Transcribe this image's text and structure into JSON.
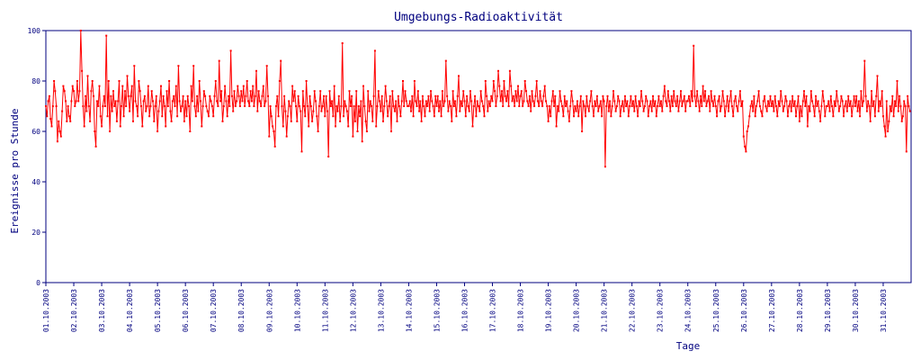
{
  "chart_data": {
    "type": "line",
    "title": "Umgebungs-Radioaktivität",
    "xlabel": "Tage",
    "ylabel": "Ereignisse pro Stunde",
    "ylim": [
      0,
      100
    ],
    "yticks": [
      "0",
      "20",
      "40",
      "60",
      "80",
      "100"
    ],
    "xticks": [
      "01.10.2003",
      "02.10.2003",
      "03.10.2003",
      "04.10.2003",
      "05.10.2003",
      "06.10.2003",
      "07.10.2003",
      "08.10.2003",
      "09.10.2003",
      "10.10.2003",
      "11.10.2003",
      "12.10.2003",
      "13.10.2003",
      "14.10.2003",
      "15.10.2003",
      "16.10.2003",
      "17.10.2003",
      "18.10.2003",
      "19.10.2003",
      "20.10.2003",
      "21.10.2003",
      "22.10.2003",
      "23.10.2003",
      "24.10.2003",
      "25.10.2003",
      "26.10.2003",
      "27.10.2003",
      "28.10.2003",
      "29.10.2003",
      "30.10.2003",
      "31.10.2003"
    ],
    "grid": false,
    "series_color": "#ff0000",
    "axis_color": "#00007f",
    "daily_values": [
      [
        70,
        66,
        72,
        74,
        65,
        62,
        70,
        80,
        76,
        70,
        56,
        64,
        60,
        58,
        68,
        78,
        76,
        72,
        64,
        70,
        66,
        64,
        72,
        78
      ],
      [
        76,
        70,
        72,
        80,
        72,
        76,
        100,
        84,
        70,
        62,
        74,
        68,
        82,
        70,
        64,
        76,
        80,
        74,
        60,
        54,
        72,
        70,
        78,
        66
      ],
      [
        62,
        70,
        74,
        70,
        98,
        66,
        80,
        60,
        74,
        68,
        76,
        70,
        72,
        64,
        72,
        80,
        62,
        70,
        78,
        66,
        76,
        70,
        82,
        74
      ],
      [
        68,
        74,
        78,
        64,
        86,
        72,
        70,
        66,
        80,
        76,
        70,
        62,
        72,
        74,
        68,
        70,
        78,
        66,
        70,
        76,
        72,
        64,
        70,
        74
      ],
      [
        60,
        68,
        72,
        78,
        66,
        74,
        70,
        62,
        76,
        70,
        80,
        68,
        64,
        72,
        74,
        70,
        78,
        66,
        86,
        72,
        68,
        70,
        74,
        64
      ],
      [
        72,
        66,
        74,
        70,
        60,
        78,
        72,
        86,
        70,
        66,
        74,
        68,
        80,
        72,
        62,
        70,
        76,
        74,
        70,
        68,
        66,
        74,
        72,
        70
      ],
      [
        66,
        74,
        80,
        72,
        70,
        88,
        72,
        76,
        64,
        70,
        78,
        72,
        66,
        74,
        70,
        92,
        74,
        68,
        76,
        70,
        72,
        78,
        74,
        70
      ],
      [
        76,
        72,
        78,
        70,
        74,
        80,
        72,
        70,
        76,
        72,
        78,
        70,
        74,
        84,
        68,
        76,
        72,
        70,
        74,
        78,
        70,
        72,
        86,
        74
      ],
      [
        58,
        70,
        66,
        62,
        60,
        54,
        70,
        74,
        66,
        80,
        88,
        70,
        62,
        74,
        68,
        58,
        66,
        72,
        70,
        64,
        78,
        72,
        76,
        70
      ],
      [
        64,
        74,
        70,
        68,
        52,
        76,
        70,
        66,
        80,
        70,
        62,
        74,
        70,
        64,
        68,
        76,
        72,
        66,
        60,
        70,
        76,
        68,
        70,
        74
      ],
      [
        66,
        74,
        68,
        50,
        76,
        70,
        72,
        66,
        78,
        62,
        70,
        68,
        74,
        64,
        70,
        95,
        66,
        72,
        70,
        68,
        62,
        76,
        70,
        74
      ],
      [
        58,
        70,
        64,
        76,
        60,
        70,
        66,
        72,
        56,
        78,
        70,
        64,
        60,
        76,
        68,
        72,
        70,
        64,
        74,
        92,
        62,
        70,
        76,
        72
      ],
      [
        68,
        74,
        64,
        70,
        78,
        72,
        66,
        70,
        74,
        60,
        76,
        70,
        68,
        72,
        64,
        74,
        70,
        66,
        72,
        80,
        70,
        76,
        72,
        70
      ],
      [
        70,
        72,
        68,
        74,
        66,
        80,
        72,
        70,
        76,
        68,
        72,
        64,
        74,
        70,
        66,
        72,
        70,
        74,
        68,
        76,
        72,
        70,
        66,
        74
      ],
      [
        70,
        74,
        68,
        72,
        66,
        76,
        70,
        72,
        88,
        74,
        68,
        72,
        70,
        64,
        76,
        70,
        72,
        66,
        74,
        82,
        68,
        72,
        70,
        76
      ],
      [
        72,
        66,
        74,
        70,
        68,
        76,
        72,
        62,
        70,
        74,
        66,
        72,
        70,
        68,
        76,
        72,
        70,
        66,
        80,
        74,
        68,
        72,
        70,
        74
      ],
      [
        72,
        80,
        76,
        70,
        74,
        84,
        78,
        72,
        76,
        70,
        80,
        74,
        72,
        76,
        70,
        84,
        78,
        72,
        74,
        70,
        76,
        72,
        78,
        70
      ],
      [
        74,
        76,
        70,
        72,
        80,
        76,
        72,
        70,
        74,
        68,
        76,
        72,
        70,
        74,
        80,
        72,
        70,
        76,
        72,
        70,
        74,
        78,
        72,
        70
      ],
      [
        64,
        70,
        66,
        72,
        76,
        70,
        74,
        62,
        70,
        68,
        76,
        72,
        70,
        66,
        74,
        70,
        72,
        68,
        64,
        70,
        76,
        72,
        66,
        70
      ],
      [
        68,
        72,
        66,
        70,
        74,
        60,
        72,
        70,
        66,
        74,
        70,
        68,
        72,
        76,
        70,
        66,
        72,
        70,
        74,
        68,
        70,
        72,
        66,
        74
      ],
      [
        72,
        46,
        70,
        74,
        68,
        72,
        66,
        70,
        76,
        72,
        68,
        70,
        74,
        72,
        66,
        70,
        72,
        68,
        74,
        70,
        72,
        66,
        70,
        74
      ],
      [
        70,
        72,
        68,
        74,
        70,
        66,
        72,
        70,
        76,
        72,
        68,
        70,
        74,
        72,
        66,
        70,
        72,
        68,
        74,
        70,
        72,
        66,
        70,
        74
      ],
      [
        70,
        72,
        68,
        74,
        78,
        72,
        70,
        76,
        72,
        68,
        74,
        70,
        76,
        72,
        70,
        74,
        68,
        72,
        76,
        70,
        72,
        74,
        68,
        72
      ],
      [
        72,
        74,
        70,
        76,
        72,
        94,
        74,
        70,
        76,
        72,
        68,
        74,
        70,
        78,
        72,
        76,
        70,
        72,
        74,
        68,
        76,
        72,
        70,
        74
      ],
      [
        70,
        66,
        72,
        74,
        68,
        70,
        76,
        72,
        66,
        70,
        74,
        68,
        72,
        76,
        70,
        66,
        72,
        74,
        70,
        68,
        72,
        76,
        70,
        72
      ],
      [
        58,
        54,
        52,
        60,
        62,
        66,
        70,
        72,
        68,
        74,
        66,
        70,
        72,
        76,
        70,
        68,
        66,
        72,
        74,
        70,
        68,
        72,
        70,
        74
      ],
      [
        70,
        72,
        68,
        74,
        70,
        66,
        72,
        70,
        76,
        72,
        68,
        70,
        74,
        72,
        66,
        70,
        72,
        68,
        74,
        70,
        72,
        66,
        70,
        74
      ],
      [
        64,
        70,
        66,
        72,
        76,
        70,
        74,
        62,
        70,
        68,
        76,
        72,
        70,
        66,
        74,
        70,
        72,
        68,
        64,
        70,
        76,
        72,
        66,
        70
      ],
      [
        70,
        72,
        68,
        74,
        70,
        66,
        72,
        70,
        76,
        72,
        68,
        70,
        74,
        72,
        66,
        70,
        72,
        68,
        74,
        70,
        72,
        66,
        70,
        74
      ],
      [
        70,
        74,
        68,
        72,
        66,
        76,
        70,
        72,
        88,
        74,
        68,
        72,
        70,
        64,
        76,
        70,
        72,
        66,
        74,
        82,
        68,
        72,
        70,
        76
      ],
      [
        66,
        62,
        58,
        72,
        60,
        64,
        70,
        68,
        74,
        66,
        72,
        70,
        80,
        68,
        74,
        70,
        64,
        66,
        72,
        70,
        52,
        74,
        70,
        68
      ]
    ]
  }
}
